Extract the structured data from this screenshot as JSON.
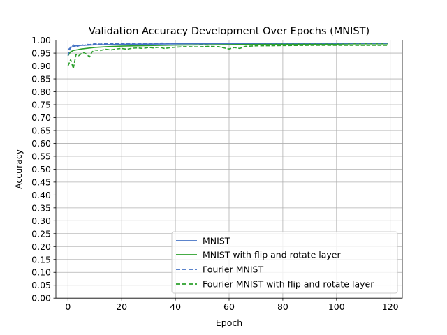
{
  "chart_data": {
    "type": "line",
    "title": "Validation Accuracy Development Over Epochs (MNIST)",
    "xlabel": "Epoch",
    "ylabel": "Accuracy",
    "xlim": [
      -4.5,
      124.5
    ],
    "ylim": [
      0,
      1.0
    ],
    "xticks": [
      0,
      20,
      40,
      60,
      80,
      100,
      120
    ],
    "yticks": [
      0.0,
      0.05,
      0.1,
      0.15,
      0.2,
      0.25,
      0.3,
      0.35,
      0.4,
      0.45,
      0.5,
      0.55,
      0.6,
      0.65,
      0.7,
      0.75,
      0.8,
      0.85,
      0.9,
      0.95,
      1.0
    ],
    "grid": true,
    "legend_position": "lower right",
    "series": [
      {
        "name": "MNIST",
        "color": "#4472c4",
        "dash": "solid",
        "x": [
          0,
          1,
          2,
          3,
          5,
          10,
          15,
          20,
          30,
          40,
          50,
          60,
          70,
          80,
          90,
          100,
          110,
          119
        ],
        "y": [
          0.962,
          0.972,
          0.976,
          0.978,
          0.98,
          0.982,
          0.983,
          0.984,
          0.985,
          0.986,
          0.987,
          0.987,
          0.987,
          0.987,
          0.987,
          0.987,
          0.987,
          0.988
        ]
      },
      {
        "name": "MNIST with flip and rotate layer",
        "color": "#2ca02c",
        "dash": "solid",
        "x": [
          0,
          1,
          2,
          3,
          5,
          10,
          15,
          20,
          30,
          40,
          50,
          60,
          70,
          80,
          90,
          100,
          110,
          119
        ],
        "y": [
          0.94,
          0.955,
          0.96,
          0.962,
          0.966,
          0.972,
          0.975,
          0.977,
          0.979,
          0.981,
          0.982,
          0.983,
          0.984,
          0.985,
          0.985,
          0.985,
          0.986,
          0.986
        ]
      },
      {
        "name": "Fourier MNIST",
        "color": "#4472c4",
        "dash": "dashed",
        "x": [
          0,
          1,
          2,
          3,
          4,
          5,
          6,
          7,
          8,
          10,
          12,
          15,
          20,
          25,
          30,
          35,
          40,
          45,
          50,
          55,
          60,
          65,
          70,
          80,
          90,
          100,
          110,
          119
        ],
        "y": [
          0.94,
          0.975,
          0.982,
          0.975,
          0.978,
          0.983,
          0.98,
          0.984,
          0.983,
          0.986,
          0.985,
          0.987,
          0.986,
          0.988,
          0.987,
          0.989,
          0.987,
          0.988,
          0.986,
          0.988,
          0.987,
          0.988,
          0.988,
          0.988,
          0.988,
          0.988,
          0.988,
          0.988
        ]
      },
      {
        "name": "Fourier MNIST with flip and rotate layer",
        "color": "#2ca02c",
        "dash": "dashed",
        "x": [
          0,
          1,
          2,
          3,
          4,
          5,
          6,
          7,
          8,
          9,
          10,
          12,
          14,
          16,
          18,
          20,
          22,
          24,
          26,
          28,
          30,
          32,
          34,
          36,
          38,
          40,
          44,
          48,
          52,
          56,
          60,
          62,
          64,
          66,
          70,
          80,
          90,
          100,
          110,
          119
        ],
        "y": [
          0.9,
          0.925,
          0.89,
          0.945,
          0.94,
          0.948,
          0.952,
          0.945,
          0.935,
          0.955,
          0.962,
          0.96,
          0.965,
          0.962,
          0.966,
          0.968,
          0.965,
          0.969,
          0.97,
          0.968,
          0.972,
          0.97,
          0.973,
          0.968,
          0.971,
          0.973,
          0.975,
          0.974,
          0.976,
          0.975,
          0.966,
          0.972,
          0.968,
          0.976,
          0.978,
          0.979,
          0.98,
          0.98,
          0.98,
          0.98
        ]
      }
    ]
  }
}
